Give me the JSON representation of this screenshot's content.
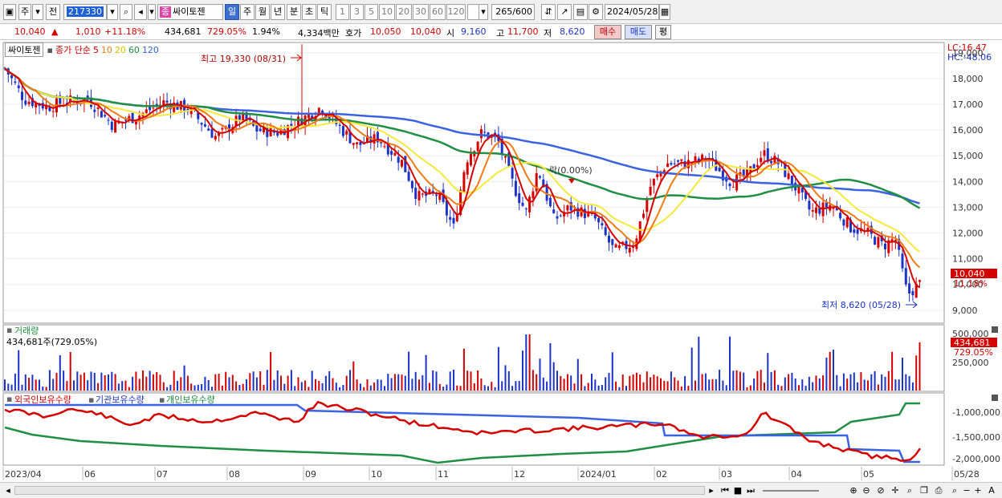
{
  "toolbar": {
    "period_type": "주",
    "prev_label": "전",
    "code": "217330",
    "stock_name": "싸이토젠",
    "name_tag": "종",
    "intervals": [
      "일",
      "주",
      "월",
      "년",
      "분",
      "초",
      "틱"
    ],
    "selected_interval": "일",
    "tick_numbers": [
      "1",
      "3",
      "5",
      "10",
      "20",
      "30",
      "60",
      "120"
    ],
    "count_value": "265",
    "count_total": "/600",
    "date": "2024/05/28"
  },
  "quote": {
    "price": "10,040",
    "arrow": "▲",
    "change": "1,010",
    "change_pct": "+11.18%",
    "volume": "434,681",
    "volume_ratio": "729.05%",
    "turnover": "1.94%",
    "amount": "4,334백만",
    "bid_label": "호가",
    "bid_high": "10,050",
    "bid_low": "10,040",
    "open_label": "시",
    "open": "9,160",
    "high_label": "고",
    "high": "11,700",
    "low_label": "저",
    "low": "8,620",
    "buy_label": "매수",
    "sell_label": "매도",
    "eval_label": "평"
  },
  "legend": {
    "stock_box": "싸이토젠",
    "ma_title": "종가 단순",
    "ma_periods": [
      "5",
      "10",
      "20",
      "60",
      "120"
    ]
  },
  "price_panel": {
    "lc_label": "LC:16.47",
    "hc_label": "HC:-48.06",
    "y_ticks": [
      "19,000",
      "18,000",
      "17,000",
      "16,000",
      "15,000",
      "14,000",
      "13,000",
      "12,000",
      "11,000",
      "10,000",
      "9,000"
    ],
    "current_price": "10,040",
    "current_pct": "11.18%",
    "high_annotation": "최고 19,330 (08/31)",
    "low_annotation": "최저 8,620 (05/28)",
    "lock_annotation": "락(0.00%)"
  },
  "volume_panel": {
    "title": "거래량",
    "value_label": "434,681주(729.05%)",
    "y_ticks": [
      "500,000",
      "250,000"
    ],
    "current": "434,681",
    "current_pct": "729.05%"
  },
  "holding_panel": {
    "foreign_label": "외국인보유수량",
    "inst_label": "기관보유수량",
    "indiv_label": "개인보유수량",
    "y_ticks": [
      "-1,000,000",
      "-1,500,000",
      "-2,000,000"
    ]
  },
  "x_axis": {
    "labels": [
      "2023/04",
      "06",
      "07",
      "08",
      "09",
      "10",
      "11",
      "12",
      "2024/01",
      "02",
      "03",
      "04",
      "05",
      "05/28"
    ]
  },
  "colors": {
    "up": "#d40000",
    "down": "#1c33c8",
    "ma5": "#d40000",
    "ma10": "#f07b12",
    "ma20": "#f5e93a",
    "ma60": "#1f8f43",
    "ma120": "#3b62e0"
  }
}
